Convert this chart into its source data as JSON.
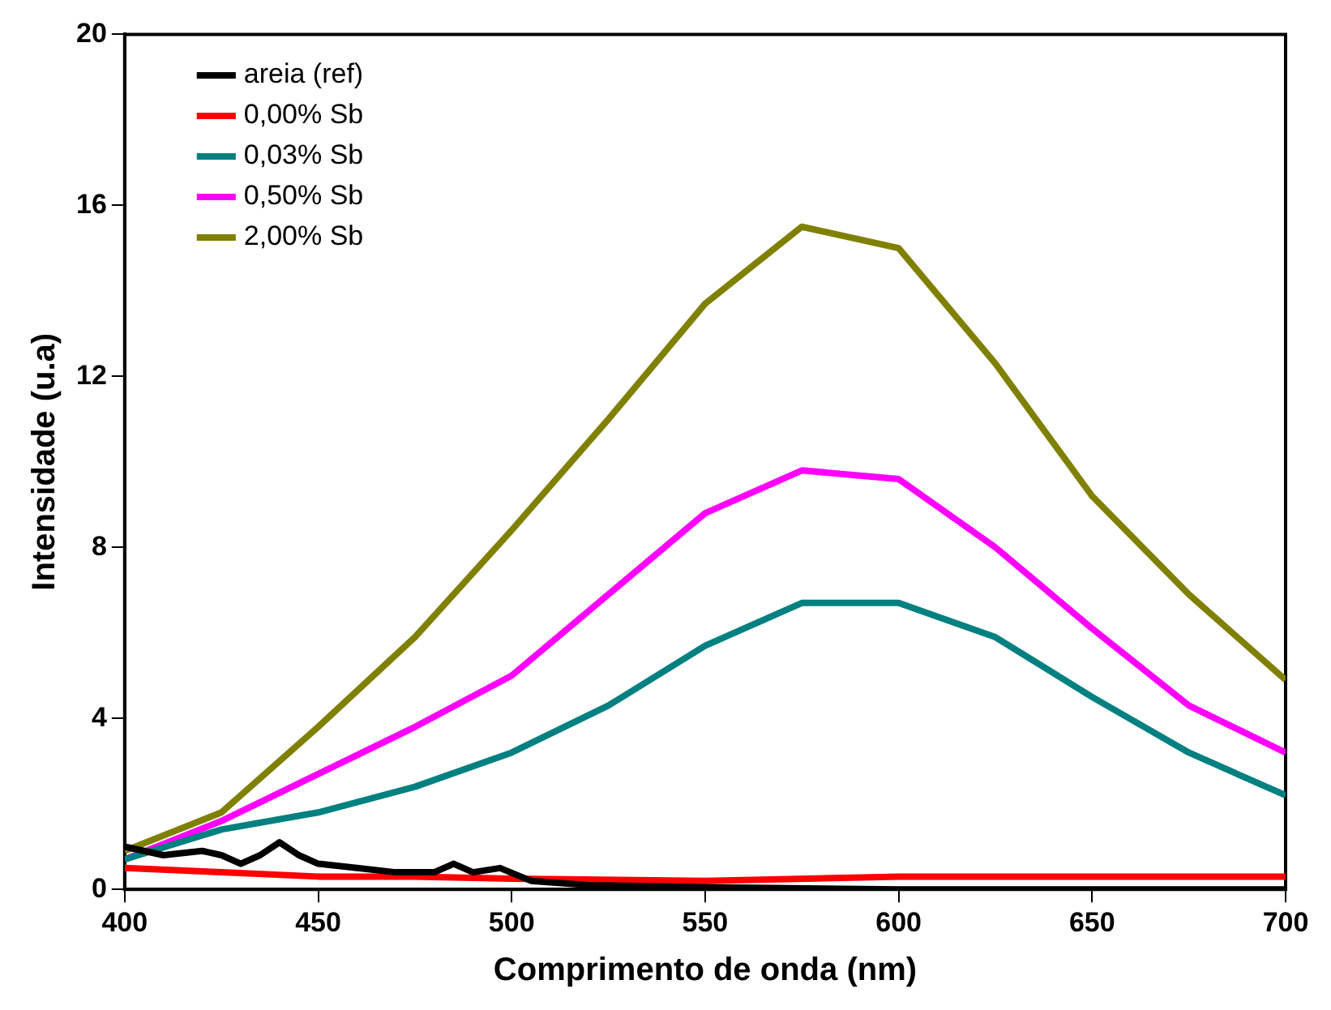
{
  "chart_data": {
    "type": "line",
    "xlabel": "Comprimento de onda (nm)",
    "ylabel": "Intensidade (u.a)",
    "xlim": [
      400,
      700
    ],
    "xticks": [
      400,
      450,
      500,
      550,
      600,
      650,
      700
    ],
    "ylim": [
      0,
      20
    ],
    "yticks": [
      0,
      4,
      8,
      12,
      16,
      20
    ],
    "legend": "top left",
    "grid": false,
    "marker": "none",
    "line_style": "solid",
    "series": [
      {
        "name": "areia (ref)",
        "color": "#000000",
        "x": [
          400,
          410,
          420,
          425,
          430,
          435,
          440,
          445,
          450,
          460,
          470,
          480,
          485,
          490,
          497,
          505,
          520,
          550,
          600,
          650,
          700
        ],
        "values": [
          1.0,
          0.8,
          0.9,
          0.8,
          0.6,
          0.8,
          1.1,
          0.8,
          0.6,
          0.5,
          0.4,
          0.4,
          0.6,
          0.4,
          0.5,
          0.2,
          0.1,
          0.05,
          0.0,
          0.0,
          0.0
        ]
      },
      {
        "name": "0,00% Sb",
        "color": "#ff0000",
        "x": [
          400,
          425,
          450,
          475,
          500,
          550,
          600,
          650,
          700
        ],
        "values": [
          0.5,
          0.4,
          0.3,
          0.3,
          0.25,
          0.2,
          0.3,
          0.3,
          0.3
        ]
      },
      {
        "name": "0,03% Sb",
        "color": "#008080",
        "x": [
          400,
          425,
          450,
          475,
          500,
          525,
          550,
          575,
          600,
          625,
          650,
          675,
          700
        ],
        "values": [
          0.7,
          1.4,
          1.8,
          2.4,
          3.2,
          4.3,
          5.7,
          6.7,
          6.7,
          5.9,
          4.5,
          3.2,
          2.2
        ]
      },
      {
        "name": "0,50% Sb",
        "color": "#ff00ff",
        "x": [
          400,
          425,
          450,
          475,
          500,
          525,
          550,
          575,
          600,
          625,
          650,
          675,
          700
        ],
        "values": [
          0.7,
          1.6,
          2.7,
          3.8,
          5.0,
          6.9,
          8.8,
          9.8,
          9.6,
          8.0,
          6.1,
          4.3,
          3.2
        ]
      },
      {
        "name": "2,00% Sb",
        "color": "#808000",
        "x": [
          400,
          425,
          450,
          475,
          500,
          525,
          550,
          575,
          600,
          625,
          650,
          675,
          700
        ],
        "values": [
          0.9,
          1.8,
          3.8,
          5.9,
          8.4,
          11.0,
          13.7,
          15.5,
          15.0,
          12.3,
          9.2,
          6.9,
          4.9
        ]
      }
    ]
  }
}
